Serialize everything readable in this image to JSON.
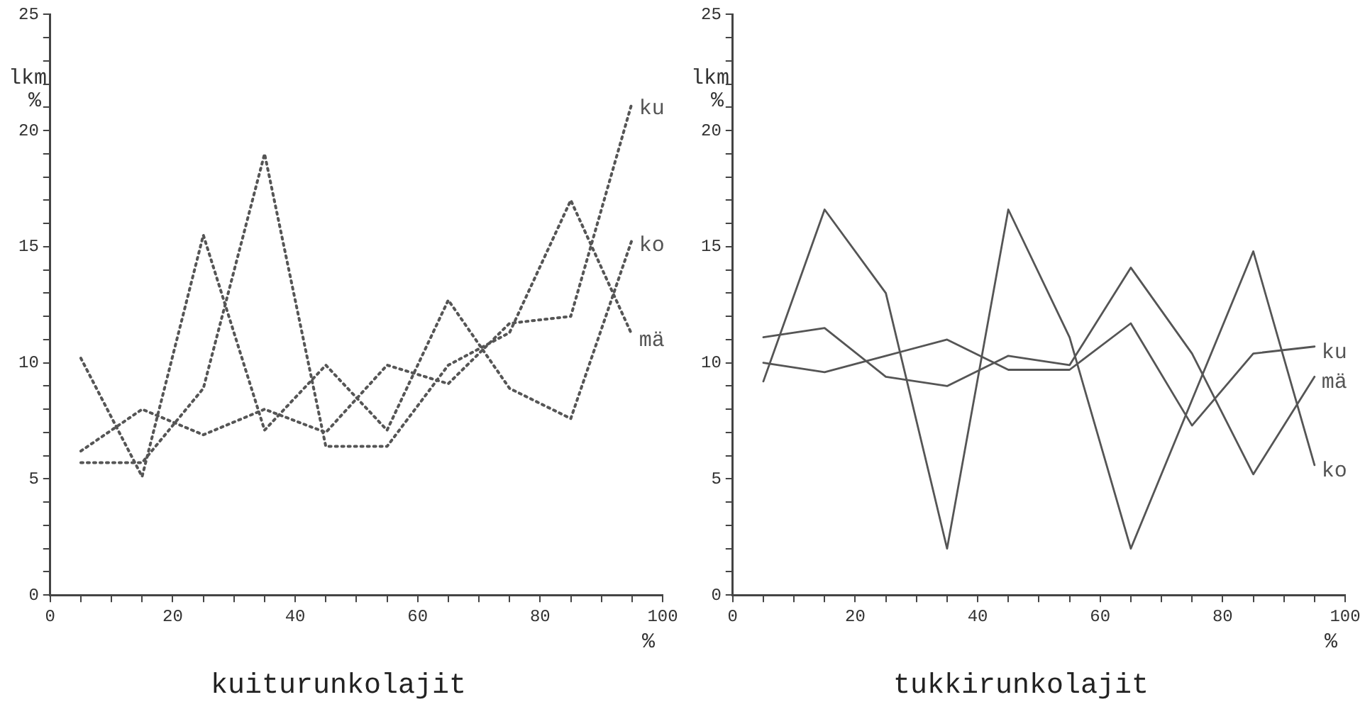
{
  "chart_data": [
    {
      "type": "line",
      "title": "kuiturunkolajit",
      "xlabel": "%",
      "ylabel": "lkm %",
      "x": [
        5,
        15,
        25,
        35,
        45,
        55,
        65,
        75,
        85,
        95
      ],
      "line_style": "dotted",
      "marker": "none",
      "grid": false,
      "legend": false,
      "xlim": [
        0,
        100
      ],
      "ylim": [
        0,
        25
      ],
      "xticks": [
        0,
        {
          "value": 5,
          "label": null
        },
        {
          "value": 10,
          "label": null
        },
        {
          "value": 15,
          "label": null
        },
        20,
        {
          "value": 25,
          "label": null
        },
        {
          "value": 30,
          "label": null
        },
        {
          "value": 35,
          "label": null
        },
        40,
        {
          "value": 45,
          "label": null
        },
        {
          "value": 50,
          "label": null
        },
        {
          "value": 55,
          "label": null
        },
        60,
        {
          "value": 65,
          "label": null
        },
        {
          "value": 70,
          "label": null
        },
        {
          "value": 75,
          "label": null
        },
        80,
        {
          "value": 85,
          "label": null
        },
        {
          "value": 90,
          "label": null
        },
        {
          "value": 95,
          "label": null
        },
        100
      ],
      "yticks": [
        0,
        {
          "value": 1,
          "label": null
        },
        {
          "value": 2,
          "label": null
        },
        {
          "value": 3,
          "label": null
        },
        {
          "value": 4,
          "label": null
        },
        5,
        {
          "value": 6,
          "label": null
        },
        {
          "value": 7,
          "label": null
        },
        {
          "value": 8,
          "label": null
        },
        {
          "value": 9,
          "label": null
        },
        10,
        {
          "value": 11,
          "label": null
        },
        {
          "value": 12,
          "label": null
        },
        {
          "value": 13,
          "label": null
        },
        {
          "value": 14,
          "label": null
        },
        15,
        {
          "value": 16,
          "label": null
        },
        {
          "value": 17,
          "label": null
        },
        {
          "value": 18,
          "label": null
        },
        {
          "value": 19,
          "label": null
        },
        20,
        {
          "value": 21,
          "label": null
        },
        {
          "value": 22,
          "label": null
        },
        {
          "value": 23,
          "label": null
        },
        {
          "value": 24,
          "label": null
        },
        25
      ],
      "series": [
        {
          "name": "ku",
          "color": "#555555",
          "values": [
            6.2,
            8.0,
            6.9,
            8.0,
            7.0,
            9.9,
            9.1,
            11.7,
            12.0,
            21.2
          ]
        },
        {
          "name": "ko",
          "color": "#555555",
          "values": [
            10.2,
            5.1,
            15.5,
            7.1,
            9.9,
            7.1,
            12.7,
            8.9,
            7.6,
            15.3
          ]
        },
        {
          "name": "mä",
          "color": "#555555",
          "values": [
            5.7,
            5.7,
            8.9,
            19.0,
            6.4,
            6.4,
            9.9,
            11.3,
            17.0,
            11.2
          ]
        }
      ]
    },
    {
      "type": "line",
      "title": "tukkirunkolajit",
      "xlabel": "%",
      "ylabel": "lkm %",
      "x": [
        5,
        15,
        25,
        35,
        45,
        55,
        65,
        75,
        85,
        95
      ],
      "line_style": "solid",
      "marker": "none",
      "grid": false,
      "legend": false,
      "xlim": [
        0,
        100
      ],
      "ylim": [
        0,
        25
      ],
      "xticks": [
        0,
        {
          "value": 5,
          "label": null
        },
        {
          "value": 10,
          "label": null
        },
        {
          "value": 15,
          "label": null
        },
        20,
        {
          "value": 25,
          "label": null
        },
        {
          "value": 30,
          "label": null
        },
        {
          "value": 35,
          "label": null
        },
        40,
        {
          "value": 45,
          "label": null
        },
        {
          "value": 50,
          "label": null
        },
        {
          "value": 55,
          "label": null
        },
        60,
        {
          "value": 65,
          "label": null
        },
        {
          "value": 70,
          "label": null
        },
        {
          "value": 75,
          "label": null
        },
        80,
        {
          "value": 85,
          "label": null
        },
        {
          "value": 90,
          "label": null
        },
        {
          "value": 95,
          "label": null
        },
        100
      ],
      "yticks": [
        0,
        {
          "value": 1,
          "label": null
        },
        {
          "value": 2,
          "label": null
        },
        {
          "value": 3,
          "label": null
        },
        {
          "value": 4,
          "label": null
        },
        5,
        {
          "value": 6,
          "label": null
        },
        {
          "value": 7,
          "label": null
        },
        {
          "value": 8,
          "label": null
        },
        {
          "value": 9,
          "label": null
        },
        10,
        {
          "value": 11,
          "label": null
        },
        {
          "value": 12,
          "label": null
        },
        {
          "value": 13,
          "label": null
        },
        {
          "value": 14,
          "label": null
        },
        15,
        {
          "value": 16,
          "label": null
        },
        {
          "value": 17,
          "label": null
        },
        {
          "value": 18,
          "label": null
        },
        {
          "value": 19,
          "label": null
        },
        20,
        {
          "value": 21,
          "label": null
        },
        {
          "value": 22,
          "label": null
        },
        {
          "value": 23,
          "label": null
        },
        {
          "value": 24,
          "label": null
        },
        25
      ],
      "series": [
        {
          "name": "ku",
          "color": "#555555",
          "values": [
            10.0,
            9.6,
            10.3,
            11.0,
            9.7,
            9.7,
            11.7,
            7.3,
            10.4,
            10.7
          ]
        },
        {
          "name": "mä",
          "color": "#555555",
          "values": [
            11.1,
            11.5,
            9.4,
            9.0,
            10.3,
            9.9,
            14.1,
            10.4,
            5.2,
            9.4
          ]
        },
        {
          "name": "ko",
          "color": "#555555",
          "values": [
            9.2,
            16.6,
            13.0,
            2.0,
            16.6,
            11.1,
            2.0,
            8.4,
            14.8,
            5.6
          ]
        }
      ]
    }
  ]
}
